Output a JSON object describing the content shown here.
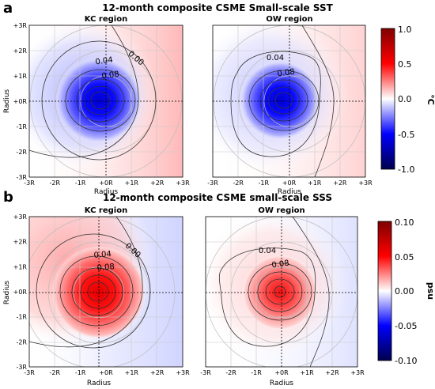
{
  "chart_data": [
    {
      "type": "heatmap",
      "panel_letter": "a",
      "title": "12-month composite CSME Small-scale SST",
      "colorbar": {
        "label": "°C",
        "range": [
          -1.0,
          1.0
        ],
        "ticks": [
          "1.0",
          "0.5",
          "0.0",
          "-0.5",
          "-1.0"
        ],
        "colormap": "seismic"
      },
      "subplots": [
        {
          "name": "KC region",
          "xlabel": "Radius",
          "ylabel": "Radius",
          "xlim": [
            -3,
            3
          ],
          "ylim": [
            -3,
            3
          ],
          "xticks": [
            "-3R",
            "-2R",
            "-1R",
            "+0R",
            "+1R",
            "+2R",
            "+3R"
          ],
          "yticks": [
            "+3R",
            "+2R",
            "+1R",
            "+0R",
            "-1R",
            "-2R",
            "-3R"
          ],
          "anomaly_peak": -1.0,
          "field_extremes": {
            "max": 0.25,
            "min": -1.0
          },
          "contour_labels": [
            "0.00",
            "0.04",
            "0.08"
          ]
        },
        {
          "name": "OW region",
          "xlabel": "Radius",
          "ylabel": "",
          "xlim": [
            -3,
            3
          ],
          "ylim": [
            -3,
            3
          ],
          "xticks": [
            "-3R",
            "-2R",
            "-1R",
            "+0R",
            "+1R",
            "+2R",
            "+3R"
          ],
          "anomaly_peak": -1.0,
          "field_extremes": {
            "max": 0.15,
            "min": -1.0
          },
          "contour_labels": [
            "0.04",
            "0.08"
          ]
        }
      ]
    },
    {
      "type": "heatmap",
      "panel_letter": "b",
      "title": "12-month composite CSME small-scale SSS",
      "colorbar": {
        "label": "psu",
        "range": [
          -0.1,
          0.1
        ],
        "ticks": [
          "0.10",
          "0.05",
          "0.00",
          "-0.05",
          "-0.10"
        ],
        "colormap": "seismic"
      },
      "subplots": [
        {
          "name": "KC region",
          "xlabel": "Radius",
          "ylabel": "Radius",
          "xlim": [
            -3,
            3
          ],
          "ylim": [
            -3,
            3
          ],
          "xticks": [
            "-3R",
            "-2R",
            "-1R",
            "+0R",
            "+1R",
            "+2R",
            "+3R"
          ],
          "yticks": [
            "+3R",
            "+2R",
            "+1R",
            "+0R",
            "-1R",
            "-2R",
            "-3R"
          ],
          "anomaly_peak": 0.1,
          "field_extremes": {
            "max": 0.1,
            "min": -0.03
          },
          "contour_labels": [
            "0.04",
            "0.08",
            "0.00"
          ]
        },
        {
          "name": "OW region",
          "xlabel": "Radius",
          "ylabel": "",
          "xlim": [
            -3,
            3
          ],
          "ylim": [
            -3,
            3
          ],
          "xticks": [
            "-3R",
            "-2R",
            "-1R",
            "+0R",
            "+1R",
            "+2R",
            "+3R"
          ],
          "anomaly_peak": 0.1,
          "field_extremes": {
            "max": 0.1,
            "min": -0.02
          },
          "contour_labels": [
            "0.04",
            "0.08"
          ]
        }
      ]
    }
  ]
}
